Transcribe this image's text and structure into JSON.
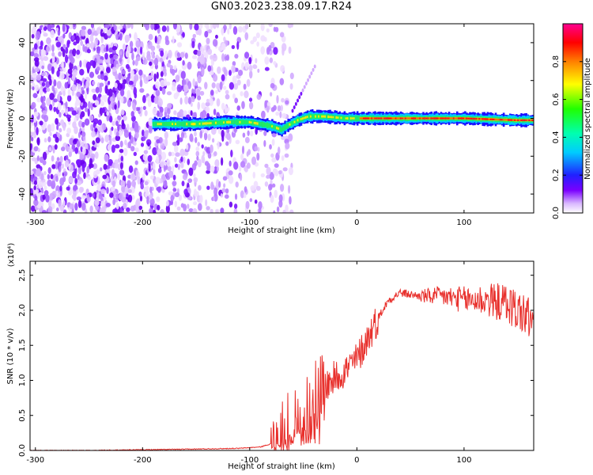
{
  "title": "GN03.2023.238.09.17.R24",
  "chart_data": [
    {
      "type": "heatmap",
      "xlabel": "Height of straight line (km)",
      "ylabel": "Frequency (Hz)",
      "xlim": [
        -305,
        165
      ],
      "ylim": [
        -50,
        50
      ],
      "xticks": [
        -300,
        -200,
        -100,
        0,
        100
      ],
      "yticks": [
        -40,
        -20,
        0,
        20,
        40
      ],
      "colorbar": {
        "label": "Normalized spectral amplitude",
        "range": [
          0.0,
          1.0
        ],
        "ticks": [
          0.0,
          0.2,
          0.4,
          0.6,
          0.8
        ],
        "colormap": "rainbow (purple→blue→cyan→green→yellow→red→magenta)"
      },
      "ridge": {
        "description": "narrow dominant frequency band near 0 Hz",
        "x": [
          -190,
          -150,
          -120,
          -100,
          -90,
          -80,
          -70,
          -65,
          -55,
          -45,
          -30,
          -10,
          0,
          50,
          100,
          150,
          165
        ],
        "freq": [
          -3,
          -3,
          -2,
          -2,
          -3,
          -4,
          -6,
          -4,
          -1,
          1,
          1,
          0,
          0,
          0,
          0,
          -1,
          -1
        ]
      }
    },
    {
      "type": "line",
      "xlabel": "Height of straight line (km)",
      "ylabel": "SNR (10 * v/v)",
      "y_multiplier": "(x10⁴)",
      "xlim": [
        -305,
        165
      ],
      "ylim": [
        0,
        2.7
      ],
      "xticks": [
        -300,
        -200,
        -100,
        0,
        100
      ],
      "yticks": [
        0.0,
        0.5,
        1.0,
        1.5,
        2.0,
        2.5
      ],
      "color": "#e8302c",
      "series": [
        {
          "name": "",
          "x": [
            -305,
            -250,
            -200,
            -150,
            -110,
            -90,
            -75,
            -65,
            -55,
            -50,
            -45,
            -40,
            -30,
            -20,
            -10,
            0,
            10,
            20,
            30,
            40,
            60,
            80,
            100,
            120,
            140,
            150,
            160,
            165
          ],
          "y": [
            0.0,
            0.0,
            0.01,
            0.02,
            0.03,
            0.05,
            0.12,
            0.3,
            0.5,
            0.7,
            0.6,
            0.75,
            0.9,
            1.05,
            1.15,
            1.3,
            1.6,
            1.9,
            2.15,
            2.25,
            2.2,
            2.2,
            2.15,
            2.15,
            2.1,
            2.0,
            1.9,
            1.8
          ]
        }
      ]
    }
  ]
}
